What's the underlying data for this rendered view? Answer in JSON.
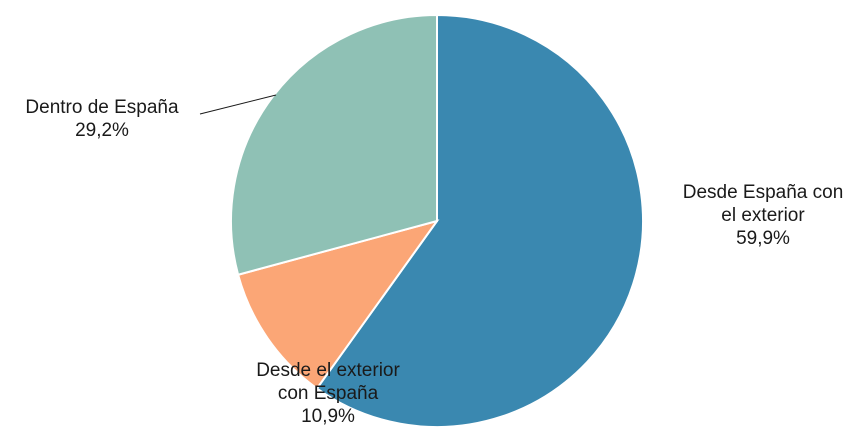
{
  "chart_data": {
    "type": "pie",
    "title": "",
    "start_angle_deg": 0,
    "direction": "clockwise",
    "slices": [
      {
        "name": "Desde España con el exterior",
        "value": 59.9,
        "value_label": "59,9%",
        "label_lines": [
          "Desde España con",
          "el exterior",
          "59,9%"
        ],
        "color": "#3a88b0"
      },
      {
        "name": "Desde el exterior con España",
        "value": 10.9,
        "value_label": "10,9%",
        "label_lines": [
          "Desde el exterior",
          "con España",
          "10,9%"
        ],
        "color": "#fba676"
      },
      {
        "name": "Dentro de España",
        "value": 29.2,
        "value_label": "29,2%",
        "label_lines": [
          "Dentro de España",
          "29,2%"
        ],
        "color": "#8fc1b5"
      }
    ]
  }
}
